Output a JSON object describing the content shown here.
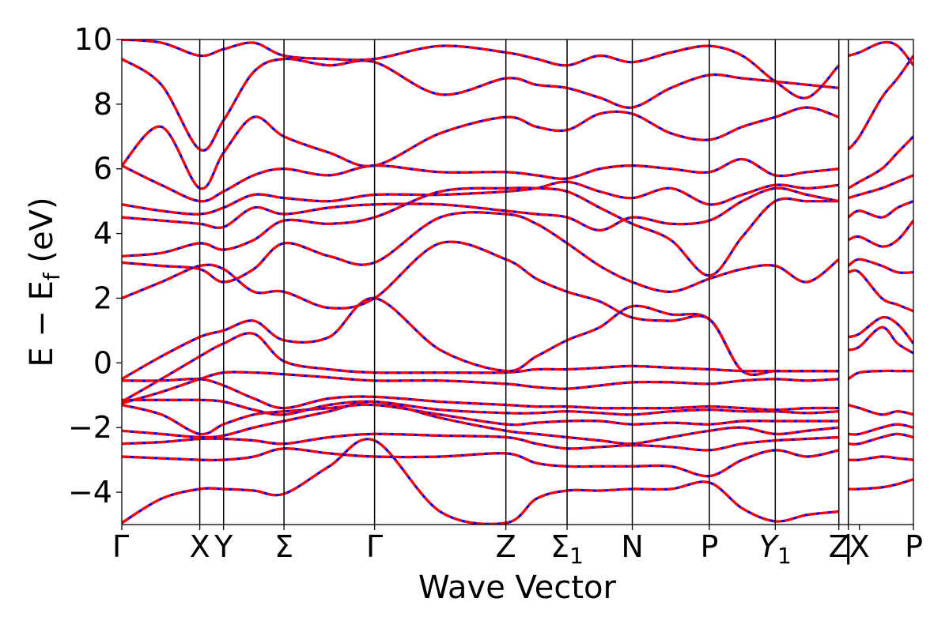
{
  "chart_data": {
    "type": "line",
    "xlabel": "Wave Vector",
    "ylabel": "E − E_f (eV)",
    "ylabel_parts": {
      "main": "E  −  E",
      "sub": "f",
      "unit": " (eV)"
    },
    "ylim": [
      -5,
      10
    ],
    "xlim": [
      0,
      1
    ],
    "yticks": [
      -4,
      -2,
      0,
      2,
      4,
      6,
      8,
      10
    ],
    "ytick_labels": [
      "−4",
      "−2",
      "0",
      "2",
      "4",
      "6",
      "8",
      "10"
    ],
    "grid": false,
    "colors": {
      "solid": "#ff0000",
      "dashed": "#0000ff",
      "vline": "#000000"
    },
    "high_symmetry": [
      {
        "label": "Γ",
        "x": 0.0
      },
      {
        "label": "X",
        "x": 0.0985
      },
      {
        "label": "Y",
        "x": 0.1286
      },
      {
        "label": "Σ",
        "x": 0.2049
      },
      {
        "label": "Γ",
        "x": 0.3193
      },
      {
        "label": "Z",
        "x": 0.4852
      },
      {
        "label": "Σ",
        "sub": "1",
        "x": 0.5625
      },
      {
        "label": "N",
        "x": 0.6449
      },
      {
        "label": "P",
        "x": 0.7422
      },
      {
        "label": "Y",
        "sub": "1",
        "italic": true,
        "x": 0.8255
      },
      {
        "label": "Z",
        "x": 0.9058
      },
      {
        "label": "|",
        "x": 0.9178
      },
      {
        "label": "X",
        "x": 0.9318
      },
      {
        "label": "P",
        "x": 1.0
      }
    ],
    "vlines": [
      0.0985,
      0.1286,
      0.2049,
      0.3193,
      0.4852,
      0.5625,
      0.6449,
      0.7422,
      0.8255,
      0.9058,
      0.9178
    ],
    "series": [
      {
        "x": [
          0.0,
          0.05,
          0.0985,
          0.1286,
          0.1667,
          0.2049,
          0.2621,
          0.3193,
          0.4022,
          0.4852,
          0.5238,
          0.5625,
          0.6037,
          0.6449,
          0.6935,
          0.7422,
          0.7838,
          0.8255,
          0.8656,
          0.9058
        ],
        "y": [
          -4.95,
          -4.2,
          -3.9,
          -3.9,
          -3.95,
          -4.05,
          -3.2,
          -2.4,
          -4.6,
          -4.95,
          -4.2,
          -3.95,
          -3.95,
          -3.9,
          -3.9,
          -3.7,
          -4.5,
          -4.9,
          -4.7,
          -4.6
        ]
      },
      {
        "x": [
          0.0,
          0.05,
          0.0985,
          0.1286,
          0.1667,
          0.2049,
          0.2621,
          0.3193,
          0.4022,
          0.4852,
          0.5238,
          0.5625,
          0.6037,
          0.6449,
          0.6935,
          0.7422,
          0.7838,
          0.8255,
          0.8656,
          0.9058
        ],
        "y": [
          -2.9,
          -2.95,
          -3.0,
          -3.0,
          -2.9,
          -2.65,
          -2.8,
          -2.9,
          -2.9,
          -2.8,
          -3.1,
          -3.2,
          -3.2,
          -3.2,
          -3.2,
          -3.5,
          -3.0,
          -2.7,
          -2.9,
          -2.7
        ]
      },
      {
        "x": [
          0.0,
          0.05,
          0.0985,
          0.1286,
          0.1667,
          0.2049,
          0.2621,
          0.3193,
          0.4022,
          0.4852,
          0.5238,
          0.5625,
          0.6037,
          0.6449,
          0.6935,
          0.7422,
          0.7838,
          0.8255,
          0.8656,
          0.9058
        ],
        "y": [
          -2.5,
          -2.45,
          -2.35,
          -2.35,
          -2.4,
          -2.5,
          -2.3,
          -2.2,
          -2.25,
          -2.3,
          -2.5,
          -2.65,
          -2.6,
          -2.55,
          -2.6,
          -2.7,
          -2.5,
          -2.4,
          -2.35,
          -2.3
        ]
      },
      {
        "x": [
          0.0,
          0.05,
          0.0985,
          0.1286,
          0.1667,
          0.2049,
          0.2621,
          0.3193,
          0.4022,
          0.4852,
          0.5238,
          0.5625,
          0.6037,
          0.6449,
          0.6935,
          0.7422,
          0.7838,
          0.8255,
          0.8656,
          0.9058
        ],
        "y": [
          -2.1,
          -2.2,
          -2.3,
          -2.25,
          -2.0,
          -1.8,
          -1.5,
          -1.2,
          -1.7,
          -2.1,
          -2.2,
          -2.3,
          -2.4,
          -2.5,
          -2.3,
          -2.1,
          -2.0,
          -2.2,
          -2.1,
          -2.0
        ]
      },
      {
        "x": [
          0.0,
          0.05,
          0.0985,
          0.1286,
          0.1667,
          0.2049,
          0.2621,
          0.3193,
          0.4022,
          0.4852,
          0.5238,
          0.5625,
          0.6037,
          0.6449,
          0.6935,
          0.7422,
          0.7838,
          0.8255,
          0.8656,
          0.9058
        ],
        "y": [
          -1.3,
          -1.6,
          -2.2,
          -1.9,
          -1.6,
          -1.5,
          -1.4,
          -1.3,
          -1.6,
          -1.9,
          -1.85,
          -1.8,
          -1.8,
          -1.9,
          -1.85,
          -1.9,
          -1.8,
          -1.8,
          -1.8,
          -1.8
        ]
      },
      {
        "x": [
          0.0,
          0.05,
          0.0985,
          0.1286,
          0.1667,
          0.2049,
          0.2621,
          0.3193,
          0.4022,
          0.4852,
          0.5238,
          0.5625,
          0.6037,
          0.6449,
          0.6935,
          0.7422,
          0.7838,
          0.8255,
          0.8656,
          0.9058
        ],
        "y": [
          -1.15,
          -1.15,
          -1.15,
          -1.2,
          -1.45,
          -1.6,
          -1.3,
          -1.2,
          -1.45,
          -1.55,
          -1.55,
          -1.5,
          -1.55,
          -1.6,
          -1.5,
          -1.45,
          -1.5,
          -1.5,
          -1.55,
          -1.5
        ]
      },
      {
        "x": [
          0.0,
          0.05,
          0.0985,
          0.1286,
          0.1667,
          0.2049,
          0.2621,
          0.3193,
          0.4022,
          0.4852,
          0.5238,
          0.5625,
          0.6037,
          0.6449,
          0.6935,
          0.7422,
          0.7838,
          0.8255,
          0.8656,
          0.9058
        ],
        "y": [
          -0.55,
          -0.55,
          -0.5,
          -0.7,
          -1.1,
          -1.4,
          -1.1,
          -1.05,
          -1.2,
          -1.3,
          -1.35,
          -1.35,
          -1.4,
          -1.4,
          -1.4,
          -1.35,
          -1.4,
          -1.45,
          -1.4,
          -1.4
        ]
      },
      {
        "x": [
          0.0,
          0.05,
          0.0985,
          0.1286,
          0.1667,
          0.2049,
          0.2621,
          0.3193,
          0.4022,
          0.4852,
          0.5238,
          0.5625,
          0.6037,
          0.6449,
          0.6935,
          0.7422,
          0.7838,
          0.8255,
          0.8656,
          0.9058
        ],
        "y": [
          -1.25,
          -0.9,
          -0.5,
          -0.3,
          -0.3,
          -0.35,
          -0.45,
          -0.55,
          -0.55,
          -0.65,
          -0.75,
          -0.8,
          -0.7,
          -0.6,
          -0.6,
          -0.65,
          -0.55,
          -0.5,
          -0.55,
          -0.5
        ]
      },
      {
        "x": [
          0.0,
          0.05,
          0.0985,
          0.1286,
          0.1667,
          0.2049,
          0.2621,
          0.3193,
          0.4022,
          0.4852,
          0.5238,
          0.5625,
          0.6037,
          0.6449,
          0.6935,
          0.7422,
          0.7838,
          0.8255,
          0.8656,
          0.9058
        ],
        "y": [
          -1.2,
          -0.5,
          0.2,
          0.6,
          0.9,
          0.05,
          -0.2,
          -0.3,
          -0.3,
          -0.3,
          -0.2,
          -0.2,
          -0.15,
          -0.1,
          -0.15,
          -0.2,
          -0.25,
          -0.25,
          -0.25,
          -0.25
        ]
      },
      {
        "x": [
          0.0,
          0.05,
          0.0985,
          0.1286,
          0.1667,
          0.2049,
          0.2621,
          0.3193,
          0.4022,
          0.4852,
          0.5238,
          0.5625,
          0.6037,
          0.6449,
          0.6935,
          0.7422,
          0.7838,
          0.8255,
          0.8656,
          0.9058
        ],
        "y": [
          -0.5,
          0.2,
          0.8,
          1.0,
          1.3,
          0.7,
          0.8,
          2.0,
          0.4,
          -0.25,
          0.2,
          0.7,
          1.1,
          1.75,
          1.5,
          1.35,
          -0.25,
          -0.25,
          -0.25,
          -0.25
        ]
      },
      {
        "x": [
          0.0,
          0.05,
          0.0985,
          0.1286,
          0.1667,
          0.2049,
          0.2621,
          0.3193,
          0.4022,
          0.4852,
          0.5238,
          0.5625,
          0.6037,
          0.6449,
          0.6935,
          0.7422,
          0.7838,
          0.8255,
          0.8656,
          0.9058
        ],
        "y": [
          2.0,
          2.5,
          3.0,
          2.9,
          2.2,
          2.2,
          1.7,
          2.0,
          3.7,
          3.2,
          2.6,
          2.2,
          1.9,
          1.4,
          1.3,
          1.35,
          -0.25,
          -0.25,
          -0.25,
          -0.25
        ]
      },
      {
        "x": [
          0.0,
          0.05,
          0.0985,
          0.1286,
          0.1667,
          0.2049,
          0.2621,
          0.3193,
          0.4022,
          0.4852,
          0.5238,
          0.5625,
          0.6037,
          0.6449,
          0.6935,
          0.7422,
          0.7838,
          0.8255,
          0.8656,
          0.9058
        ],
        "y": [
          3.1,
          3.0,
          2.9,
          2.5,
          2.9,
          3.7,
          3.3,
          3.1,
          4.5,
          4.6,
          4.3,
          3.7,
          3.0,
          2.5,
          2.2,
          2.6,
          2.9,
          3.0,
          2.5,
          3.2
        ]
      },
      {
        "x": [
          0.0,
          0.05,
          0.0985,
          0.1286,
          0.1667,
          0.2049,
          0.2621,
          0.3193,
          0.4022,
          0.4852,
          0.5238,
          0.5625,
          0.6037,
          0.6449,
          0.6935,
          0.7422,
          0.7838,
          0.8255,
          0.8656,
          0.9058
        ],
        "y": [
          3.3,
          3.4,
          3.7,
          3.5,
          3.8,
          4.4,
          4.3,
          4.5,
          5.3,
          5.4,
          5.4,
          5.3,
          4.8,
          4.3,
          3.8,
          2.7,
          3.9,
          5.0,
          5.0,
          5.0
        ]
      },
      {
        "x": [
          0.0,
          0.05,
          0.0985,
          0.1286,
          0.1667,
          0.2049,
          0.2621,
          0.3193,
          0.4022,
          0.4852,
          0.5238,
          0.5625,
          0.6037,
          0.6449,
          0.6935,
          0.7422,
          0.7838,
          0.8255,
          0.8656,
          0.9058
        ],
        "y": [
          4.5,
          4.4,
          4.3,
          4.2,
          4.8,
          4.6,
          4.8,
          4.9,
          4.9,
          4.7,
          4.6,
          4.5,
          4.1,
          4.5,
          4.3,
          4.4,
          5.0,
          5.4,
          5.2,
          5.0
        ]
      },
      {
        "x": [
          0.0,
          0.05,
          0.0985,
          0.1286,
          0.1667,
          0.2049,
          0.2621,
          0.3193,
          0.4022,
          0.4852,
          0.5238,
          0.5625,
          0.6037,
          0.6449,
          0.6935,
          0.7422,
          0.7838,
          0.8255,
          0.8656,
          0.9058
        ],
        "y": [
          4.9,
          4.7,
          4.6,
          4.8,
          5.2,
          5.1,
          5.0,
          5.2,
          5.2,
          5.3,
          5.4,
          5.6,
          5.3,
          5.1,
          5.4,
          4.9,
          5.2,
          5.5,
          5.4,
          5.5
        ]
      },
      {
        "x": [
          0.0,
          0.05,
          0.0985,
          0.1286,
          0.1667,
          0.2049,
          0.2621,
          0.3193,
          0.4022,
          0.4852,
          0.5238,
          0.5625,
          0.6037,
          0.6449,
          0.6935,
          0.7422,
          0.7838,
          0.8255,
          0.8656,
          0.9058
        ],
        "y": [
          6.1,
          5.5,
          5.0,
          5.3,
          5.8,
          6.0,
          5.8,
          6.1,
          5.9,
          5.9,
          5.8,
          5.7,
          6.0,
          6.1,
          6.0,
          5.9,
          6.3,
          5.8,
          5.9,
          6.0
        ]
      },
      {
        "x": [
          0.0,
          0.05,
          0.0985,
          0.1286,
          0.1667,
          0.2049,
          0.2621,
          0.3193,
          0.4022,
          0.4852,
          0.5238,
          0.5625,
          0.6037,
          0.6449,
          0.6935,
          0.7422,
          0.7838,
          0.8255,
          0.8656,
          0.9058
        ],
        "y": [
          6.1,
          7.3,
          5.4,
          6.5,
          7.6,
          7.0,
          6.5,
          6.1,
          7.1,
          7.6,
          7.3,
          7.2,
          7.7,
          7.7,
          7.1,
          6.9,
          7.3,
          7.6,
          7.9,
          7.6
        ]
      },
      {
        "x": [
          0.0,
          0.05,
          0.0985,
          0.1286,
          0.1667,
          0.2049,
          0.2621,
          0.3193,
          0.4022,
          0.4852,
          0.5238,
          0.5625,
          0.6037,
          0.6449,
          0.6935,
          0.7422,
          0.7838,
          0.8255,
          0.8656,
          0.9058
        ],
        "y": [
          9.4,
          8.6,
          6.6,
          7.5,
          9.0,
          9.4,
          9.2,
          9.3,
          8.3,
          8.8,
          8.6,
          8.5,
          8.2,
          7.9,
          8.5,
          8.9,
          8.8,
          8.7,
          8.6,
          8.5
        ]
      },
      {
        "x": [
          0.0,
          0.05,
          0.0985,
          0.1286,
          0.1667,
          0.2049,
          0.2621,
          0.3193,
          0.4022,
          0.4852,
          0.5238,
          0.5625,
          0.6037,
          0.6449,
          0.6935,
          0.7422,
          0.7838,
          0.8255,
          0.8656,
          0.9058
        ],
        "y": [
          10.0,
          9.9,
          9.5,
          9.7,
          9.9,
          9.5,
          9.4,
          9.4,
          9.8,
          9.6,
          9.4,
          9.2,
          9.5,
          9.3,
          9.6,
          9.8,
          9.5,
          8.7,
          8.2,
          9.2
        ]
      },
      {
        "x": [
          0.9178,
          0.9318,
          0.96,
          0.98,
          1.0
        ],
        "y": [
          -3.9,
          -3.9,
          -3.85,
          -3.75,
          -3.6
        ]
      },
      {
        "x": [
          0.9178,
          0.9318,
          0.96,
          0.98,
          1.0
        ],
        "y": [
          -3.0,
          -3.0,
          -2.9,
          -2.95,
          -3.0
        ]
      },
      {
        "x": [
          0.9178,
          0.9318,
          0.96,
          0.98,
          1.0
        ],
        "y": [
          -2.5,
          -2.5,
          -2.3,
          -2.2,
          -2.3
        ]
      },
      {
        "x": [
          0.9178,
          0.9318,
          0.96,
          0.98,
          1.0
        ],
        "y": [
          -2.2,
          -2.2,
          -2.0,
          -1.9,
          -2.0
        ]
      },
      {
        "x": [
          0.9178,
          0.9318,
          0.96,
          0.98,
          1.0
        ],
        "y": [
          -1.3,
          -1.4,
          -1.6,
          -1.5,
          -1.6
        ]
      },
      {
        "x": [
          0.9178,
          0.9318,
          0.96,
          0.98,
          1.0
        ],
        "y": [
          -0.5,
          -0.3,
          -0.25,
          -0.25,
          -0.25
        ]
      },
      {
        "x": [
          0.9178,
          0.9318,
          0.96,
          0.98,
          1.0
        ],
        "y": [
          0.4,
          0.5,
          1.1,
          0.6,
          0.3
        ]
      },
      {
        "x": [
          0.9178,
          0.9318,
          0.96,
          0.98,
          1.0
        ],
        "y": [
          0.8,
          0.9,
          1.4,
          1.2,
          0.6
        ]
      },
      {
        "x": [
          0.9178,
          0.9318,
          0.96,
          0.98,
          1.0
        ],
        "y": [
          2.8,
          2.8,
          2.0,
          1.8,
          1.6
        ]
      },
      {
        "x": [
          0.9178,
          0.9318,
          0.96,
          0.98,
          1.0
        ],
        "y": [
          3.0,
          3.2,
          3.0,
          2.8,
          2.8
        ]
      },
      {
        "x": [
          0.9178,
          0.9318,
          0.96,
          0.98,
          1.0
        ],
        "y": [
          3.8,
          3.9,
          3.6,
          3.8,
          4.4
        ]
      },
      {
        "x": [
          0.9178,
          0.9318,
          0.96,
          0.98,
          1.0
        ],
        "y": [
          4.5,
          4.7,
          4.5,
          4.8,
          5.0
        ]
      },
      {
        "x": [
          0.9178,
          0.9318,
          0.96,
          0.98,
          1.0
        ],
        "y": [
          5.1,
          5.2,
          5.4,
          5.6,
          5.8
        ]
      },
      {
        "x": [
          0.9178,
          0.9318,
          0.96,
          0.98,
          1.0
        ],
        "y": [
          5.4,
          5.6,
          6.0,
          6.5,
          7.0
        ]
      },
      {
        "x": [
          0.9178,
          0.9318,
          0.96,
          0.98,
          1.0
        ],
        "y": [
          6.6,
          7.0,
          8.2,
          8.8,
          9.5
        ]
      },
      {
        "x": [
          0.9178,
          0.9318,
          0.96,
          0.98,
          1.0
        ],
        "y": [
          9.5,
          9.6,
          9.9,
          9.8,
          9.2
        ]
      }
    ]
  }
}
